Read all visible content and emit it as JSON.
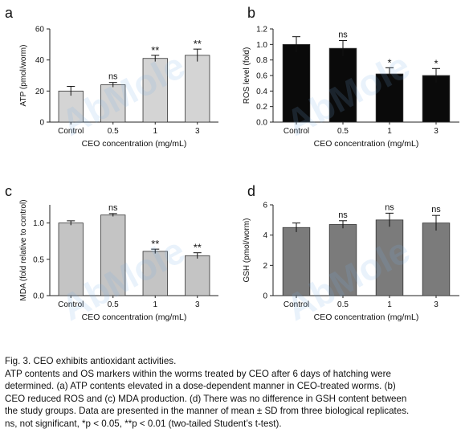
{
  "watermark": "AbMole",
  "caption": {
    "lines": [
      "Fig. 3. CEO exhibits antioxidant activities.",
      "ATP contents and OS markers within the worms treated by CEO after 6 days of hatching were",
      "determined. (a) ATP contents elevated in a dose-dependent manner in CEO-treated worms. (b)",
      "CEO reduced ROS and (c) MDA production. (d) There was no difference in GSH content between",
      "the study groups. Data are presented in the manner of mean ± SD from three biological replicates.",
      "ns, not significant, *p < 0.05, **p < 0.01 (two-tailed Student’s t-test)."
    ]
  },
  "chart_data": [
    {
      "type": "bar",
      "panel": "a",
      "categories": [
        "Control",
        "0.5",
        "1",
        "3"
      ],
      "values": [
        20,
        24,
        41,
        43
      ],
      "errors": [
        3,
        1.5,
        2,
        4
      ],
      "significance": [
        "",
        "ns",
        "**",
        "**"
      ],
      "xlabel": "CEO concentration (mg/mL)",
      "ylabel": "ATP (pmol/worm)",
      "ylim": [
        0,
        60
      ],
      "yticks": [
        0,
        20,
        40,
        60
      ],
      "bar_color": "#d4d4d4"
    },
    {
      "type": "bar",
      "panel": "b",
      "categories": [
        "Control",
        "0.5",
        "1",
        "3"
      ],
      "values": [
        1.0,
        0.95,
        0.62,
        0.6
      ],
      "errors": [
        0.1,
        0.1,
        0.08,
        0.09
      ],
      "significance": [
        "",
        "ns",
        "*",
        "*"
      ],
      "xlabel": "CEO concentration (mg/mL)",
      "ylabel": "ROS level (fold)",
      "ylim": [
        0.0,
        1.2
      ],
      "yticks": [
        "0.0",
        "0.2",
        "0.4",
        "0.6",
        "0.8",
        "1.0",
        "1.2"
      ],
      "bar_color": "#0a0a0a"
    },
    {
      "type": "bar",
      "panel": "c",
      "categories": [
        "Control",
        "0.5",
        "1",
        "3"
      ],
      "values": [
        1.0,
        1.11,
        0.61,
        0.55
      ],
      "errors": [
        0.03,
        0.02,
        0.03,
        0.04
      ],
      "significance": [
        "",
        "ns",
        "**",
        "**"
      ],
      "xlabel": "CEO concentration (mg/mL)",
      "ylabel": "MDA (fold relative to control)",
      "ylim": [
        0.0,
        1.25
      ],
      "yticks": [
        "0.0",
        "0.5",
        "1.0"
      ],
      "bar_color": "#c4c4c4"
    },
    {
      "type": "bar",
      "panel": "d",
      "categories": [
        "Control",
        "0.5",
        "1",
        "3"
      ],
      "values": [
        4.5,
        4.7,
        5.0,
        4.8
      ],
      "errors": [
        0.3,
        0.25,
        0.45,
        0.5
      ],
      "significance": [
        "",
        "ns",
        "ns",
        "ns"
      ],
      "xlabel": "CEO concentration (mg/mL)",
      "ylabel": "GSH (pmol/worm)",
      "ylim": [
        0,
        6
      ],
      "yticks": [
        0,
        2,
        4,
        6
      ],
      "bar_color": "#7b7b7b"
    }
  ]
}
